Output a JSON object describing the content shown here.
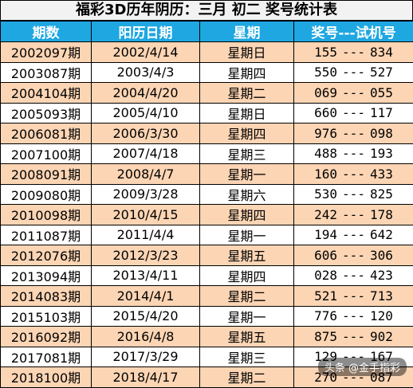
{
  "title": "福彩3D历年阴历：三月  初二  奖号统计表",
  "headers": [
    "期数",
    "阳历日期",
    "星期",
    "奖号---试机号"
  ],
  "rows": [
    {
      "period": "2002097期",
      "date": "2002/4/14",
      "weekday": "星期日",
      "draw": "155",
      "sep": "---",
      "test": "834"
    },
    {
      "period": "2003087期",
      "date": "2003/4/3",
      "weekday": "星期四",
      "draw": "550",
      "sep": "---",
      "test": "527"
    },
    {
      "period": "2004104期",
      "date": "2004/4/20",
      "weekday": "星期二",
      "draw": "069",
      "sep": "---",
      "test": "055"
    },
    {
      "period": "2005093期",
      "date": "2005/4/10",
      "weekday": "星期日",
      "draw": "660",
      "sep": "---",
      "test": "117"
    },
    {
      "period": "2006081期",
      "date": "2006/3/30",
      "weekday": "星期四",
      "draw": "976",
      "sep": "---",
      "test": "098"
    },
    {
      "period": "2007100期",
      "date": "2007/4/18",
      "weekday": "星期三",
      "draw": "488",
      "sep": "---",
      "test": "193"
    },
    {
      "period": "2008091期",
      "date": "2008/4/7",
      "weekday": "星期一",
      "draw": "160",
      "sep": "---",
      "test": "433"
    },
    {
      "period": "2009080期",
      "date": "2009/3/28",
      "weekday": "星期六",
      "draw": "530",
      "sep": "---",
      "test": "825"
    },
    {
      "period": "2010098期",
      "date": "2010/4/15",
      "weekday": "星期四",
      "draw": "242",
      "sep": "---",
      "test": "178"
    },
    {
      "period": "2011087期",
      "date": "2011/4/4",
      "weekday": "星期一",
      "draw": "194",
      "sep": "---",
      "test": "642"
    },
    {
      "period": "2012076期",
      "date": "2012/3/23",
      "weekday": "星期五",
      "draw": "606",
      "sep": "---",
      "test": "306"
    },
    {
      "period": "2013094期",
      "date": "2013/4/11",
      "weekday": "星期四",
      "draw": "028",
      "sep": "---",
      "test": "423"
    },
    {
      "period": "2014083期",
      "date": "2014/4/1",
      "weekday": "星期二",
      "draw": "521",
      "sep": "---",
      "test": "713"
    },
    {
      "period": "2015103期",
      "date": "2015/4/20",
      "weekday": "星期一",
      "draw": "776",
      "sep": "---",
      "test": "120"
    },
    {
      "period": "2016092期",
      "date": "2016/4/8",
      "weekday": "星期五",
      "draw": "875",
      "sep": "---",
      "test": "902"
    },
    {
      "period": "2017081期",
      "date": "2017/3/29",
      "weekday": "星期三",
      "draw": "129",
      "sep": "---",
      "test": "167"
    },
    {
      "period": "2018100期",
      "date": "2018/4/17",
      "weekday": "星期二",
      "draw": "270",
      "sep": "---",
      "test": "087"
    }
  ],
  "watermark": "头条 @金手指彩",
  "colors": {
    "header": "#1ea7e1",
    "odd_row": "#fcd5b4",
    "even_row": "#ffffff"
  }
}
